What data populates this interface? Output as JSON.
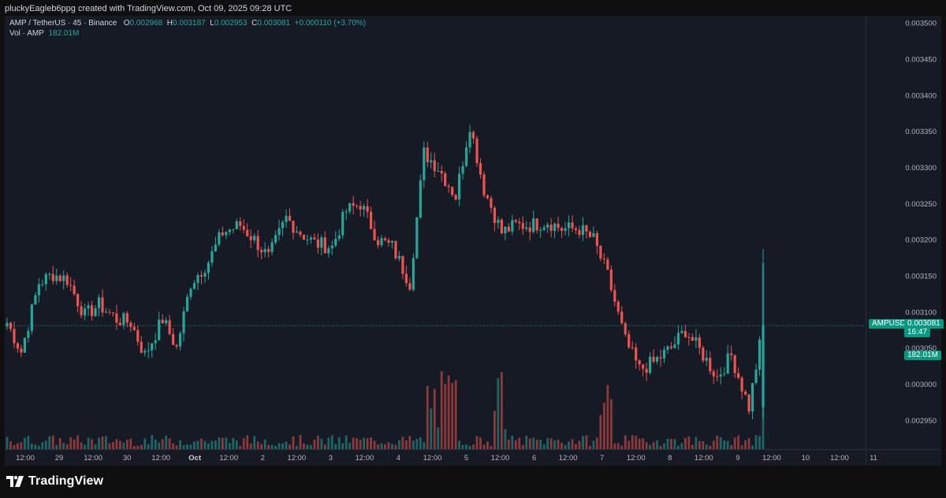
{
  "header": {
    "caption": "pluckyEagleb6ppg created with TradingView.com, Oct 09, 2025 09:28 UTC"
  },
  "legend": {
    "symbol": "AMP / TetherUS · 45 · Binance",
    "open_label": "O",
    "open": "0.002968",
    "high_label": "H",
    "high": "0.003187",
    "low_label": "L",
    "low": "0.002953",
    "close_label": "C",
    "close": "0.003081",
    "change": "+0.000110 (+3.70%)",
    "volume_label": "Vol · AMP",
    "volume": "182.01M"
  },
  "badges": {
    "symbol": "AMPUSDT",
    "price": "0.003081",
    "countdown": "16:47",
    "volume": "182.01M"
  },
  "footer": {
    "logo_text": "TradingView"
  },
  "colors": {
    "up": "#26a69a",
    "down": "#ef5350",
    "background": "#161a25",
    "axis_text": "#b2b5be",
    "badge": "#089981"
  },
  "chart_data": {
    "type": "candlestick",
    "title": "AMP / TetherUS · 45 · Binance",
    "interval": "45",
    "ylim": [
      0.00291,
      0.00351
    ],
    "y_ticks": [
      "0.003500",
      "0.003450",
      "0.003400",
      "0.003350",
      "0.003300",
      "0.003250",
      "0.003200",
      "0.003150",
      "0.003100",
      "0.003050",
      "0.003000",
      "0.002950"
    ],
    "x_ticks": [
      "12:00",
      "29",
      "12:00",
      "30",
      "12:00",
      "Oct",
      "12:00",
      "2",
      "12:00",
      "3",
      "12:00",
      "4",
      "12:00",
      "5",
      "12:00",
      "6",
      "12:00",
      "7",
      "12:00",
      "8",
      "12:00",
      "9",
      "12:00",
      "10",
      "12:00",
      "11"
    ],
    "x_tick_bold": [
      false,
      false,
      false,
      false,
      false,
      true,
      false,
      false,
      false,
      false,
      false,
      false,
      false,
      false,
      false,
      false,
      false,
      false,
      false,
      false,
      false,
      false,
      false,
      false,
      false,
      false
    ],
    "last_price": 0.003081,
    "grid": false,
    "series": [
      {
        "name": "AMP / TetherUS",
        "points": [
          {
            "time": "Sep 28 12:00",
            "close": 0.003085
          },
          {
            "time": "Sep 28 18:00",
            "close": 0.003045
          },
          {
            "time": "Sep 29 00:00",
            "close": 0.00314
          },
          {
            "time": "Sep 29 06:00",
            "close": 0.003152
          },
          {
            "time": "Sep 29 12:00",
            "close": 0.003145
          },
          {
            "time": "Sep 29 18:00",
            "close": 0.003095
          },
          {
            "time": "Sep 30 00:00",
            "close": 0.00311
          },
          {
            "time": "Sep 30 06:00",
            "close": 0.00309
          },
          {
            "time": "Sep 30 12:00",
            "close": 0.003085
          },
          {
            "time": "Sep 30 18:00",
            "close": 0.00304
          },
          {
            "time": "Oct 1 00:00",
            "close": 0.00309
          },
          {
            "time": "Oct 1 06:00",
            "close": 0.00305
          },
          {
            "time": "Oct 1 12:00",
            "close": 0.00314
          },
          {
            "time": "Oct 1 18:00",
            "close": 0.00317
          },
          {
            "time": "Oct 2 00:00",
            "close": 0.00321
          },
          {
            "time": "Oct 2 06:00",
            "close": 0.00322
          },
          {
            "time": "Oct 2 12:00",
            "close": 0.0032
          },
          {
            "time": "Oct 2 18:00",
            "close": 0.003175
          },
          {
            "time": "Oct 3 00:00",
            "close": 0.00323
          },
          {
            "time": "Oct 3 06:00",
            "close": 0.00321
          },
          {
            "time": "Oct 3 12:00",
            "close": 0.003195
          },
          {
            "time": "Oct 3 18:00",
            "close": 0.00319
          },
          {
            "time": "Oct 4 00:00",
            "close": 0.00324
          },
          {
            "time": "Oct 4 06:00",
            "close": 0.00325
          },
          {
            "time": "Oct 4 12:00",
            "close": 0.0032
          },
          {
            "time": "Oct 4 18:00",
            "close": 0.00319
          },
          {
            "time": "Oct 5 00:00",
            "close": 0.00314
          },
          {
            "time": "Oct 5 03:00",
            "close": 0.00332
          },
          {
            "time": "Oct 5 06:00",
            "close": 0.0033
          },
          {
            "time": "Oct 5 12:00",
            "close": 0.00326
          },
          {
            "time": "Oct 5 15:00",
            "close": 0.00336
          },
          {
            "time": "Oct 5 18:00",
            "close": 0.00327
          },
          {
            "time": "Oct 6 00:00",
            "close": 0.00321
          },
          {
            "time": "Oct 6 06:00",
            "close": 0.00322
          },
          {
            "time": "Oct 6 12:00",
            "close": 0.00322
          },
          {
            "time": "Oct 6 18:00",
            "close": 0.003225
          },
          {
            "time": "Oct 7 00:00",
            "close": 0.003215
          },
          {
            "time": "Oct 7 06:00",
            "close": 0.003215
          },
          {
            "time": "Oct 7 12:00",
            "close": 0.0032
          },
          {
            "time": "Oct 7 15:00",
            "close": 0.00315
          },
          {
            "time": "Oct 7 18:00",
            "close": 0.00306
          },
          {
            "time": "Oct 8 00:00",
            "close": 0.00302
          },
          {
            "time": "Oct 8 06:00",
            "close": 0.00303
          },
          {
            "time": "Oct 8 12:00",
            "close": 0.00305
          },
          {
            "time": "Oct 8 18:00",
            "close": 0.003075
          },
          {
            "time": "Oct 9 00:00",
            "close": 0.00304
          },
          {
            "time": "Oct 9 03:00",
            "close": 0.00301
          },
          {
            "time": "Oct 9 06:00",
            "close": 0.00304
          },
          {
            "time": "Oct 9 08:15",
            "close": 0.002968
          },
          {
            "time": "Oct 9 09:00",
            "close": 0.003081
          }
        ]
      }
    ]
  }
}
